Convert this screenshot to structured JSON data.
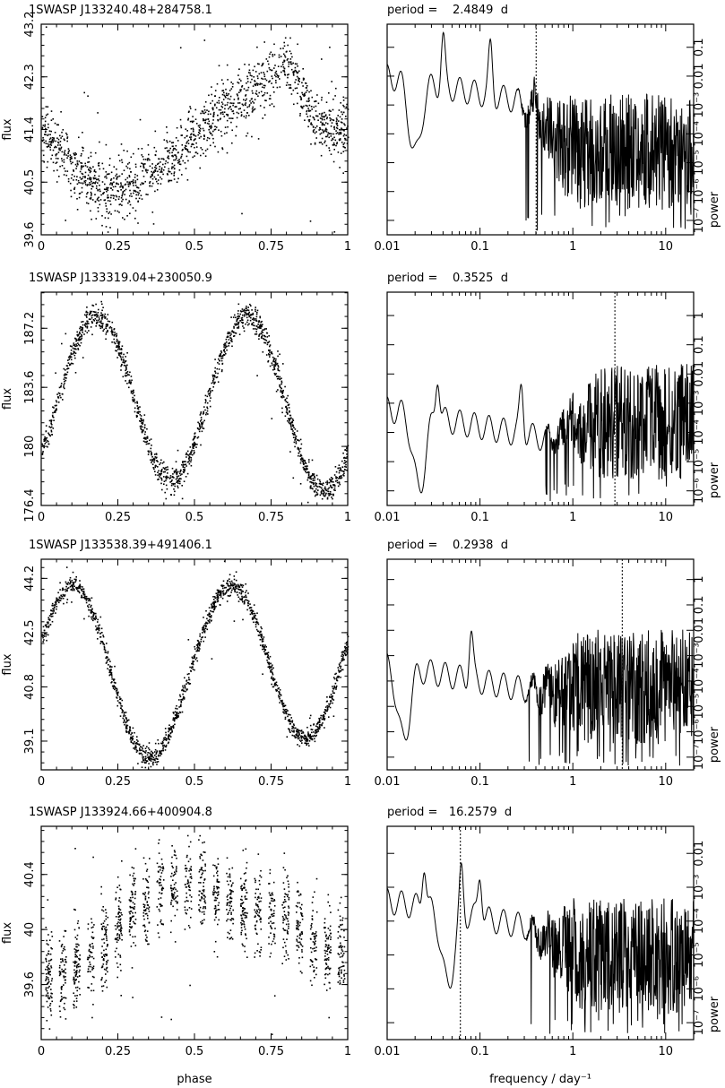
{
  "chart_data": [
    {
      "id": "p1",
      "type": "scatter",
      "title": "1SWASP J133240.48+284758.1",
      "ylabel": "flux",
      "xlabel": "",
      "xlim": [
        0,
        1
      ],
      "ylim": [
        39.6,
        43.2
      ],
      "xticks": [
        "0",
        "0.25",
        "0.5",
        "0.75",
        "1"
      ],
      "yticks": [
        "39.6",
        "40.5",
        "41.4",
        "42.3",
        "43.2"
      ],
      "light_curve_shape": {
        "type": "noisy-trend",
        "knots_x": [
          0,
          0.1,
          0.2,
          0.3,
          0.4,
          0.5,
          0.6,
          0.7,
          0.8,
          0.9,
          1.0
        ],
        "knots_y": [
          41.4,
          40.8,
          40.35,
          40.5,
          40.8,
          41.3,
          41.8,
          42.1,
          42.6,
          41.5,
          41.4
        ],
        "scatter": 0.45
      }
    },
    {
      "id": "g1",
      "type": "line",
      "title": "period =    2.4849  d",
      "ylabel": "power",
      "xlabel": "",
      "xscale": "log",
      "xlim": [
        0.01,
        20
      ],
      "yscale": "log",
      "xticks": [
        "0.01",
        "0.1",
        "1",
        "10"
      ],
      "yticks": [
        "10⁻⁷",
        "10⁻⁶",
        "10⁻⁵",
        "10⁻⁴",
        "10⁻³",
        "0.01",
        "0.1"
      ],
      "period_days": 2.4849,
      "marked_frequency": 0.4024,
      "spectrum_shape": {
        "start_level": 0.75,
        "dip_at": 0.02,
        "bumps": [
          0.04,
          0.13,
          0.4
        ],
        "noise_from": 0.25
      }
    },
    {
      "id": "p2",
      "type": "scatter",
      "title": "1SWASP J133319.04+230050.9",
      "ylabel": "flux",
      "xlabel": "",
      "xlim": [
        0,
        1
      ],
      "ylim": [
        176.4,
        189.4
      ],
      "xticks": [
        "0",
        "0.25",
        "0.5",
        "0.75",
        "1"
      ],
      "yticks": [
        "176.4",
        "180",
        "183.6",
        "187.2"
      ],
      "light_curve_shape": {
        "type": "eclipsing",
        "max_flux": 188.0,
        "min_flux": 178.0,
        "min2_flux": 177.3,
        "phase_max": [
          0.18,
          0.67
        ],
        "phase_min": [
          0.42,
          0.92
        ],
        "scatter": 0.7
      }
    },
    {
      "id": "g2",
      "type": "line",
      "title": "period =    0.3525  d",
      "ylabel": "power",
      "xlabel": "",
      "xscale": "log",
      "xlim": [
        0.01,
        20
      ],
      "yscale": "log",
      "xticks": [
        "0.01",
        "0.1",
        "1",
        "10"
      ],
      "yticks": [
        "10⁻⁶",
        "10⁻⁵",
        "10⁻⁴",
        "10⁻³",
        "0.01",
        "0.1",
        "1"
      ],
      "period_days": 0.3525,
      "marked_frequency": 2.837,
      "spectrum_shape": {
        "start_level": 0.45,
        "dip_at": 0.022,
        "bumps": [
          0.035,
          0.28,
          0.95,
          5.7
        ],
        "noise_from": 0.5
      }
    },
    {
      "id": "p3",
      "type": "scatter",
      "title": "1SWASP J133538.39+491406.1",
      "ylabel": "flux",
      "xlabel": "",
      "xlim": [
        0,
        1
      ],
      "ylim": [
        38.2,
        44.8
      ],
      "xticks": [
        "0",
        "0.25",
        "0.5",
        "0.75",
        "1"
      ],
      "yticks": [
        "39.1",
        "40.8",
        "42.5",
        "44.2"
      ],
      "light_curve_shape": {
        "type": "eclipsing",
        "max_flux": 44.0,
        "min_flux": 38.6,
        "min2_flux": 39.2,
        "phase_max": [
          0.1,
          0.62
        ],
        "phase_min": [
          0.35,
          0.86
        ],
        "scatter": 0.25
      }
    },
    {
      "id": "g3",
      "type": "line",
      "title": "period =    0.2938  d",
      "ylabel": "power",
      "xlabel": "",
      "xscale": "log",
      "xlim": [
        0.01,
        20
      ],
      "yscale": "log",
      "xticks": [
        "0.01",
        "0.1",
        "1",
        "10"
      ],
      "yticks": [
        "10⁻⁷",
        "10⁻⁶",
        "10⁻⁵",
        "10⁻⁴",
        "10⁻³",
        "0.01",
        "0.1",
        "1"
      ],
      "period_days": 0.2938,
      "marked_frequency": 3.404,
      "spectrum_shape": {
        "start_level": 0.5,
        "dip_at": 0.015,
        "bumps": [
          0.08,
          0.95,
          6.8
        ],
        "noise_from": 0.3
      }
    },
    {
      "id": "p4",
      "type": "scatter",
      "title": "1SWASP J133924.66+400904.8",
      "ylabel": "flux",
      "xlabel": "phase",
      "xlim": [
        0,
        1
      ],
      "ylim": [
        39.2,
        40.75
      ],
      "xticks": [
        "0",
        "0.25",
        "0.5",
        "0.75",
        "1"
      ],
      "yticks": [
        "39.6",
        "40",
        "40.4"
      ],
      "light_curve_shape": {
        "type": "striped",
        "knots_x": [
          0,
          0.1,
          0.2,
          0.3,
          0.4,
          0.5,
          0.6,
          0.7,
          0.8,
          0.9,
          1.0
        ],
        "knots_y": [
          39.65,
          39.7,
          39.9,
          40.15,
          40.3,
          40.35,
          40.2,
          40.15,
          40.1,
          39.9,
          39.8
        ],
        "scatter": 0.28
      }
    },
    {
      "id": "g4",
      "type": "line",
      "title": "period =   16.2579  d",
      "ylabel": "power",
      "xlabel": "frequency / day⁻¹",
      "xscale": "log",
      "xlim": [
        0.01,
        20
      ],
      "yscale": "log",
      "xticks": [
        "0.01",
        "0.1",
        "1",
        "10"
      ],
      "yticks": [
        "10⁻⁷",
        "10⁻⁶",
        "10⁻⁵",
        "10⁻⁴",
        "10⁻³",
        "0.01"
      ],
      "period_days": 16.2579,
      "marked_frequency": 0.0615,
      "spectrum_shape": {
        "start_level": 0.65,
        "dip_at": 0.045,
        "bumps": [
          0.025,
          0.063,
          0.1,
          1.0
        ],
        "noise_from": 0.3
      }
    }
  ]
}
